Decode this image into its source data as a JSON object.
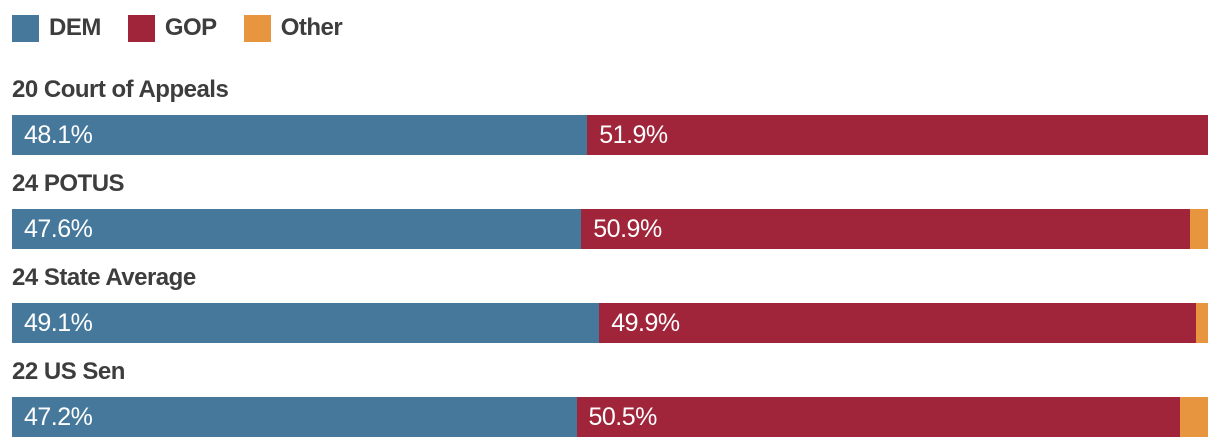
{
  "legend": {
    "items": [
      {
        "label": "DEM",
        "color": "#45789b"
      },
      {
        "label": "GOP",
        "color": "#a0243a"
      },
      {
        "label": "Other",
        "color": "#e8953f"
      }
    ]
  },
  "chart_data": {
    "type": "bar",
    "orientation": "horizontal",
    "stacked": true,
    "unit": "percent",
    "x_range": [
      0,
      100
    ],
    "grid": false,
    "legend_position": "top-left",
    "categories": [
      "20 Court of Appeals",
      "24 POTUS",
      "24 State Average",
      "22 US Sen"
    ],
    "series": [
      {
        "name": "DEM",
        "color": "#45789b",
        "values": [
          48.1,
          47.6,
          49.1,
          47.2
        ]
      },
      {
        "name": "GOP",
        "color": "#a0243a",
        "values": [
          51.9,
          50.9,
          49.9,
          50.5
        ]
      },
      {
        "name": "Other",
        "color": "#e8953f",
        "values": [
          0,
          1.5,
          1.0,
          2.3
        ]
      }
    ],
    "rows": [
      {
        "category": "20 Court of Appeals",
        "dem": 48.1,
        "gop": 51.9,
        "other": 0,
        "dem_label": "48.1%",
        "gop_label": "51.9%"
      },
      {
        "category": "24 POTUS",
        "dem": 47.6,
        "gop": 50.9,
        "other": 1.5,
        "dem_label": "47.6%",
        "gop_label": "50.9%"
      },
      {
        "category": "24 State Average",
        "dem": 49.1,
        "gop": 49.9,
        "other": 1.0,
        "dem_label": "49.1%",
        "gop_label": "49.9%"
      },
      {
        "category": "22 US Sen",
        "dem": 47.2,
        "gop": 50.5,
        "other": 2.3,
        "dem_label": "47.2%",
        "gop_label": "50.5%"
      }
    ]
  }
}
